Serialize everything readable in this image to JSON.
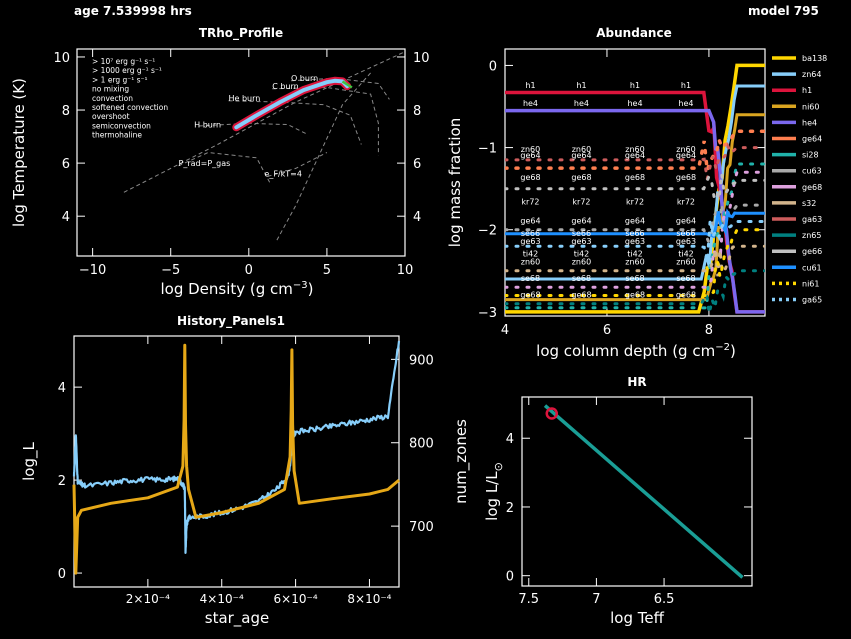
{
  "header": {
    "left": "age 7.539998 hrs",
    "right": "model 795"
  },
  "colors": {
    "bg": "#000000",
    "axes": "#ffffff",
    "log_L": "#e6a817",
    "num_zones": "#87cefa",
    "hr_track": "#1a9e96",
    "hr_marker": "#dc143c",
    "trho_core": "#87cefa",
    "trho_outline": "#dc143c",
    "guide": "#888888"
  },
  "chart_data": [
    {
      "id": "trho",
      "type": "line",
      "title": "TRho_Profile",
      "xlabel": "log Density (g cm",
      "xlabel_sup": "−3",
      "xlabel_close": ")",
      "ylabel": "log Temperature (K)",
      "xlim": [
        -11,
        10
      ],
      "ylim": [
        2.5,
        10.3
      ],
      "xticks": [
        -10,
        -5,
        0,
        5,
        10
      ],
      "yticks": [
        4,
        6,
        8,
        10
      ],
      "legend": [
        {
          "text": "> 10⁷ erg g⁻¹ s⁻¹",
          "color": "#ff3030"
        },
        {
          "text": "> 1000 erg g⁻¹ s⁻¹",
          "color": "#ff9030"
        },
        {
          "text": "> 1 erg g⁻¹ s⁻¹",
          "color": "#f0e030"
        },
        {
          "text": "no mixing",
          "color": "#40c040"
        },
        {
          "text": "convection",
          "color": "#87cefa"
        },
        {
          "text": "softened convection",
          "color": "#ffffff"
        },
        {
          "text": "overshoot",
          "color": "#ffffff"
        },
        {
          "text": "semiconvection",
          "color": "#ffffff"
        },
        {
          "text": "thermohaline",
          "color": "#c080ff"
        }
      ],
      "annotations": [
        {
          "text": "O burn",
          "x": 2.7,
          "y": 9.1
        },
        {
          "text": "C burn",
          "x": 1.5,
          "y": 8.8
        },
        {
          "text": "He burn",
          "x": -1.3,
          "y": 8.35
        },
        {
          "text": "H burn",
          "x": -3.5,
          "y": 7.35
        },
        {
          "text": "P_rad=P_gas",
          "x": -4.5,
          "y": 5.9
        },
        {
          "text": "e_F/kT=4",
          "x": 1.0,
          "y": 5.5
        }
      ],
      "profile": {
        "x": [
          -0.8,
          0.5,
          2.0,
          3.5,
          5.0,
          5.5,
          6.0,
          6.3
        ],
        "y": [
          7.35,
          7.8,
          8.3,
          8.75,
          9.05,
          9.1,
          9.08,
          8.9
        ]
      }
    },
    {
      "id": "abundance",
      "type": "line",
      "title": "Abundance",
      "xlabel": "log column depth (g cm",
      "xlabel_sup": "−2",
      "xlabel_close": ")",
      "ylabel": "log mass fraction",
      "xlim": [
        4,
        9.1
      ],
      "ylim": [
        -3.05,
        0.2
      ],
      "xticks": [
        4,
        6,
        8
      ],
      "yticks": [
        0,
        -1,
        -2,
        -3
      ],
      "series": [
        {
          "name": "ba138",
          "color": "#ffd700",
          "y_flat": -3.0,
          "y_end": 0.0
        },
        {
          "name": "zn64",
          "color": "#87cefa",
          "y_flat": -2.6,
          "y_end": -0.25
        },
        {
          "name": "h1",
          "color": "#dc143c",
          "y_flat": -0.33,
          "y_end": -3.0,
          "label_in_plot": "h1"
        },
        {
          "name": "ni60",
          "color": "#daa520",
          "y_flat": -2.85,
          "y_end": -0.6
        },
        {
          "name": "he4",
          "color": "#7b68ee",
          "y_flat": -0.55,
          "y_end": -3.0,
          "label_in_plot": "he4"
        },
        {
          "name": "ge64",
          "color": "#ff7f50",
          "y_flat": -1.25,
          "y_end": -0.8
        },
        {
          "name": "si28",
          "color": "#20b2aa",
          "y_flat": -2.95,
          "y_end": -1.2
        },
        {
          "name": "cu63",
          "color": "#a9a9a9",
          "y_flat": -2.0,
          "y_end": -1.7
        },
        {
          "name": "ge68",
          "color": "#dda0dd",
          "y_flat": -2.7,
          "y_end": -1.3
        },
        {
          "name": "s32",
          "color": "#d2b48c",
          "y_flat": -2.5,
          "y_end": -2.2
        },
        {
          "name": "ga63",
          "color": "#cd5c5c",
          "y_flat": -1.15,
          "y_end": -1.0
        },
        {
          "name": "zn65",
          "color": "#008080",
          "y_flat": -2.9,
          "y_end": -2.5
        },
        {
          "name": "ge66",
          "color": "#c0c0c0",
          "y_flat": -1.5,
          "y_end": -1.4
        },
        {
          "name": "cu61",
          "color": "#1e90ff",
          "y_flat": -2.05,
          "y_end": -1.8
        },
        {
          "name": "ni61",
          "color": "#ffd700",
          "y_flat": -2.8,
          "y_end": -2.0
        },
        {
          "name": "ga65",
          "color": "#87cefa",
          "y_flat": -2.2,
          "y_end": -1.9
        }
      ],
      "in_plot_labels": [
        "h1",
        "he4",
        "zn60",
        "ge64",
        "ge68",
        "kr72",
        "ge64",
        "se66",
        "ge63",
        "ti42",
        "zn60",
        "se68",
        "ge68"
      ]
    },
    {
      "id": "history",
      "type": "line",
      "title": "History_Panels1",
      "xlabel": "star_age",
      "ylabel_left": "log_L",
      "ylabel_right": "num_zones",
      "xlim": [
        0.0,
        0.00088
      ],
      "ylim_left": [
        -0.3,
        5.1
      ],
      "ylim_right": [
        627,
        928
      ],
      "xticks": [
        0.0002,
        0.0004,
        0.0006,
        0.0008
      ],
      "xticklabels": [
        "2×10⁻⁴",
        "4×10⁻⁴",
        "6×10⁻⁴",
        "8×10⁻⁴"
      ],
      "yticks_left": [
        0,
        2,
        4
      ],
      "yticks_right": [
        700,
        800,
        900
      ],
      "series": [
        {
          "name": "log_L",
          "axis": "left",
          "x": [
            0.0,
            5e-06,
            1e-05,
            2e-05,
            0.0001,
            0.0002,
            0.00028,
            0.000295,
            0.000298,
            0.0003,
            0.000302,
            0.000305,
            0.00031,
            0.00033,
            0.0004,
            0.0005,
            0.00057,
            0.000585,
            0.000588,
            0.00059,
            0.000592,
            0.000596,
            0.00061,
            0.0007,
            0.0008,
            0.00085,
            0.00088
          ],
          "y": [
            1.9,
            0.0,
            1.2,
            1.35,
            1.5,
            1.62,
            1.85,
            2.3,
            3.3,
            4.9,
            3.2,
            2.3,
            1.8,
            1.2,
            1.3,
            1.5,
            1.8,
            2.5,
            3.5,
            4.8,
            3.2,
            2.2,
            1.5,
            1.6,
            1.7,
            1.8,
            2.0
          ]
        },
        {
          "name": "num_zones",
          "axis": "right",
          "x": [
            0.0,
            5e-06,
            1e-05,
            3e-05,
            0.0001,
            0.00015,
            0.0002,
            0.00025,
            0.00028,
            0.000295,
            0.0003,
            0.000302,
            0.000305,
            0.00031,
            0.00035,
            0.0004,
            0.00045,
            0.0005,
            0.00055,
            0.00058,
            0.00059,
            0.000592,
            0.0006,
            0.00065,
            0.0007,
            0.00075,
            0.0008,
            0.00085,
            0.00088
          ],
          "y": [
            760,
            810,
            752,
            748,
            752,
            755,
            756,
            756,
            757,
            750,
            745,
            670,
            702,
            710,
            712,
            716,
            722,
            730,
            745,
            760,
            790,
            806,
            813,
            816,
            820,
            824,
            828,
            832,
            922
          ]
        }
      ]
    },
    {
      "id": "hr",
      "type": "line",
      "title": "HR",
      "xlabel": "log Teff",
      "ylabel": "log L/L",
      "ylabel_sub": "⊙",
      "xlim": [
        7.55,
        5.85
      ],
      "ylim": [
        -0.3,
        5.2
      ],
      "xticks": [
        7.5,
        7.0,
        6.5
      ],
      "xticklabels": [
        "7.5",
        "7",
        "6.5"
      ],
      "yticks": [
        0,
        2,
        4
      ],
      "track": {
        "x": [
          7.38,
          5.92
        ],
        "y": [
          4.95,
          -0.05
        ]
      },
      "marker": {
        "x": 7.33,
        "y": 4.72
      }
    }
  ]
}
